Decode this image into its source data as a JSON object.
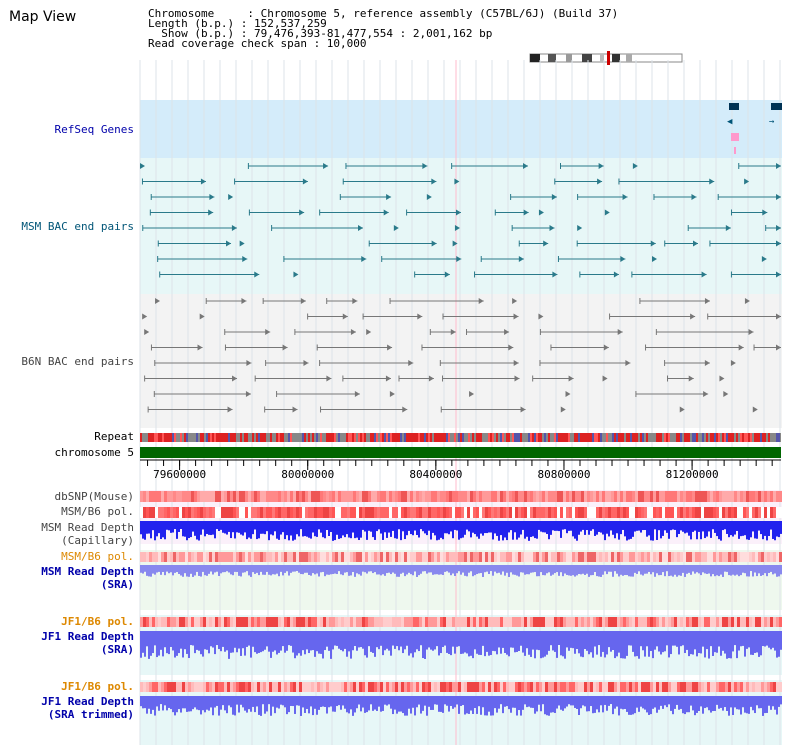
{
  "title": "Map View",
  "info": {
    "l1": "Chromosome     : Chromosome 5, reference assembly (C57BL/6J) (Build 37)",
    "l2": "Length (b.p.) : 152,537,259",
    "l3": "Show (b.p.) : 79,476,393-81,477,554 : 2,001,162 bp",
    "l4": "Read coverage check span : 10,000"
  },
  "tracks": {
    "refseq": "RefSeq Genes",
    "msm_bac": "MSM BAC end pairs",
    "b6n_bac": "B6N BAC end pairs",
    "repeat": "Repeat",
    "chromosome": "chromosome 5",
    "dbsnp": "dbSNP(Mouse)",
    "msm_pol1": "MSM/B6 pol.",
    "msm_depth_cap_1": "MSM Read Depth",
    "msm_depth_cap_2": "(Capillary)",
    "msm_pol2": "MSM/B6 pol.",
    "msm_depth_sra_1": "MSM Read Depth",
    "msm_depth_sra_2": "(SRA)",
    "jf1_pol1": "JF1/B6 pol.",
    "jf1_depth_1": "JF1 Read Depth",
    "jf1_depth_2": "(SRA)",
    "jf1_pol2": "JF1/B6 pol.",
    "jf1_trim_1": "JF1 Read Depth",
    "jf1_trim_2": "(SRA trimmed)"
  },
  "axis": {
    "ticks": [
      {
        "pos": 79600000,
        "label": "79600000"
      },
      {
        "pos": 80000000,
        "label": "80000000"
      },
      {
        "pos": 80400000,
        "label": "80400000"
      },
      {
        "pos": 80800000,
        "label": "80800000"
      },
      {
        "pos": 81200000,
        "label": "81200000"
      }
    ],
    "start": 79476393,
    "end": 81477554
  },
  "colors": {
    "label_blue": "#0000aa",
    "label_teal": "#005577",
    "label_gray": "#444444",
    "label_orange": "#dd8800",
    "chrom_green": "#006600"
  }
}
